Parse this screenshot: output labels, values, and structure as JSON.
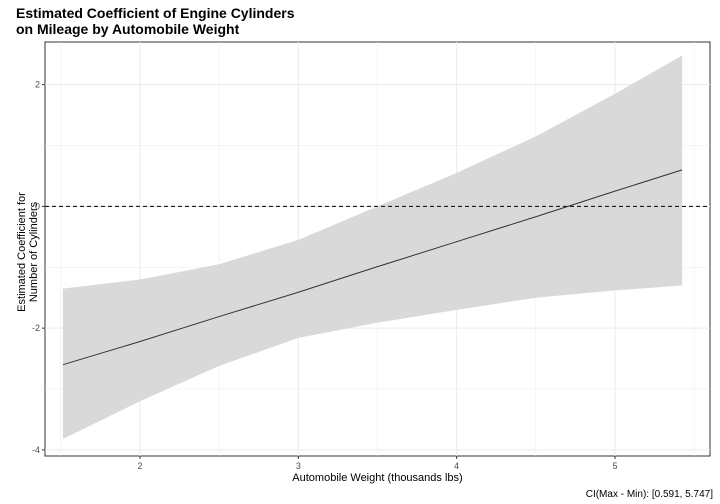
{
  "chart_data": {
    "type": "line",
    "title": [
      "Estimated Coefficient of Engine Cylinders",
      "on Mileage by Automobile Weight"
    ],
    "xlabel": "Automobile Weight (thousands lbs)",
    "ylabel": [
      "Estimated Coefficient for",
      "Number of Cylinders"
    ],
    "caption": "CI(Max - Min): [0.591, 5.747]",
    "xlim": [
      1.4,
      5.6
    ],
    "ylim": [
      -4.1,
      2.7
    ],
    "x_ticks": [
      2,
      3,
      4,
      5
    ],
    "y_ticks": [
      -4,
      -2,
      0,
      2
    ],
    "x_tick_labels": [
      "2",
      "3",
      "4",
      "5"
    ],
    "y_tick_labels": [
      "-4",
      "-2",
      "0",
      "2"
    ],
    "reference_line": 0,
    "grid": true,
    "colors": {
      "band": "#d9d9d9",
      "line": "#333333",
      "grid": "#ebebeb"
    },
    "series": [
      {
        "x": [
          1.513,
          2.0,
          2.5,
          3.0,
          3.5,
          4.0,
          4.5,
          5.0,
          5.424
        ],
        "y": [
          -2.6,
          -2.22,
          -1.81,
          -1.41,
          -0.99,
          -0.58,
          -0.17,
          0.25,
          0.6
        ],
        "lower": [
          -3.82,
          -3.2,
          -2.62,
          -2.16,
          -1.91,
          -1.7,
          -1.5,
          -1.38,
          -1.3
        ],
        "upper": [
          -1.35,
          -1.2,
          -0.95,
          -0.55,
          0.0,
          0.55,
          1.15,
          1.85,
          2.48
        ]
      }
    ]
  }
}
